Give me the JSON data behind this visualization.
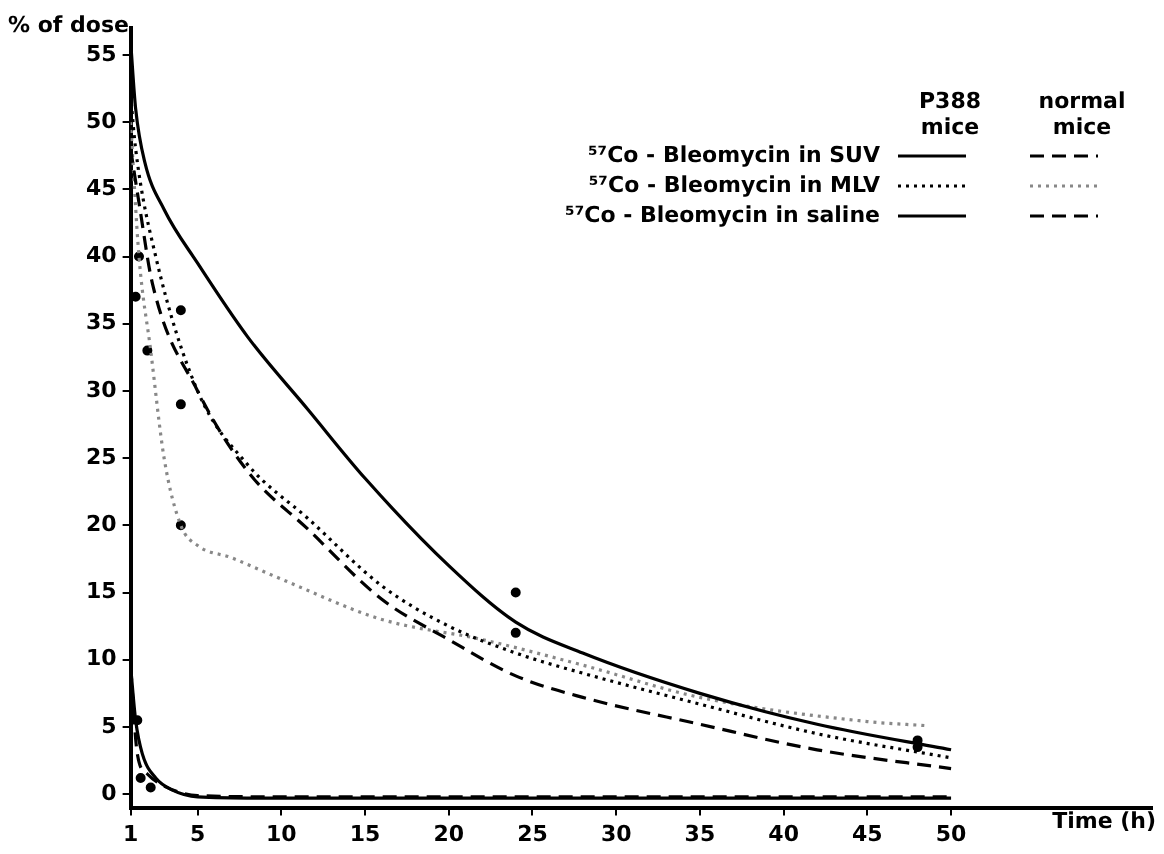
{
  "chart_data": {
    "type": "line",
    "xlabel": "Time (h)",
    "ylabel": "% of dose",
    "annotations": [
      "P388 mice",
      "normal mice"
    ],
    "xlim": [
      1,
      62
    ],
    "xticks": [
      1,
      5,
      10,
      15,
      20,
      25,
      30,
      35,
      40,
      45,
      50
    ],
    "ylim": [
      -1,
      57
    ],
    "yticks": [
      0,
      5,
      10,
      15,
      20,
      25,
      30,
      35,
      40,
      45,
      50,
      55
    ],
    "grid": false,
    "legend": "top right",
    "marker": "none",
    "series": [
      {
        "name": "⁵⁷Co - Bleomycin in SUV",
        "color": "#000000",
        "line_style": "solid",
        "x": [
          1,
          1.3,
          1.85,
          3,
          5,
          8,
          11.6,
          15,
          20,
          24,
          28,
          35,
          42,
          50
        ],
        "values": [
          56,
          51,
          47,
          43.5,
          39.5,
          34,
          28.6,
          23.5,
          17,
          12.8,
          10.5,
          7.5,
          5.2,
          3.3
        ]
      },
      {
        "name": "⁵⁷Co - Bleomycin in MLV",
        "color": "#000000",
        "line_style": "dotted",
        "x": [
          1,
          1.3,
          2.5,
          5,
          8,
          11.6,
          16,
          20,
          24,
          28,
          35,
          42,
          50
        ],
        "values": [
          52,
          48,
          40,
          30,
          24.5,
          20.5,
          15.5,
          12.5,
          10.5,
          9,
          6.7,
          4.5,
          2.7
        ]
      },
      {
        "name": "⁵⁷Co - Bleomycin in saline",
        "color": "#000000",
        "line_style": "solid",
        "x": [
          1,
          1.3,
          1.7,
          2.5,
          3.5,
          5,
          10,
          20,
          30,
          40,
          50
        ],
        "values": [
          9.5,
          5.5,
          3,
          1.2,
          0.3,
          -0.2,
          -0.3,
          -0.3,
          -0.3,
          -0.3,
          -0.3
        ]
      },
      {
        "color": "#000000",
        "line_style": "dashed",
        "x": [
          1,
          1.5,
          2.3,
          5,
          8,
          11.6,
          16,
          20,
          24,
          28,
          35,
          42,
          50
        ],
        "values": [
          48,
          44,
          38,
          30,
          24,
          19.7,
          14.5,
          11.5,
          8.8,
          7.2,
          5.2,
          3.3,
          1.9
        ]
      },
      {
        "color": "#888888",
        "line_style": "dotted",
        "x": [
          1,
          1.5,
          2.2,
          3,
          4,
          5,
          7,
          10,
          16,
          22,
          28,
          35,
          45,
          48.5
        ],
        "values": [
          50,
          40,
          33,
          25,
          20,
          18.5,
          17.6,
          16,
          13,
          11.5,
          9.6,
          7.2,
          5.4,
          5.1
        ]
      },
      {
        "color": "#000000",
        "line_style": "dashed",
        "x": [
          1,
          1.4,
          2,
          3,
          5,
          10,
          20,
          30,
          40,
          50
        ],
        "values": [
          9.5,
          3,
          1.5,
          0.6,
          -0.1,
          -0.2,
          -0.2,
          -0.2,
          -0.2,
          -0.2
        ]
      },
      {
        "type": "scatter",
        "color": "#000000",
        "marker": "circle",
        "x": [
          1.3,
          1.5,
          2,
          4,
          4,
          4,
          24,
          24,
          48,
          48,
          1.4,
          1.6,
          2.2
        ],
        "values": [
          37,
          40,
          33,
          36,
          29,
          20,
          15,
          12,
          4,
          3.5,
          5.5,
          1.2,
          0.5
        ]
      }
    ]
  }
}
